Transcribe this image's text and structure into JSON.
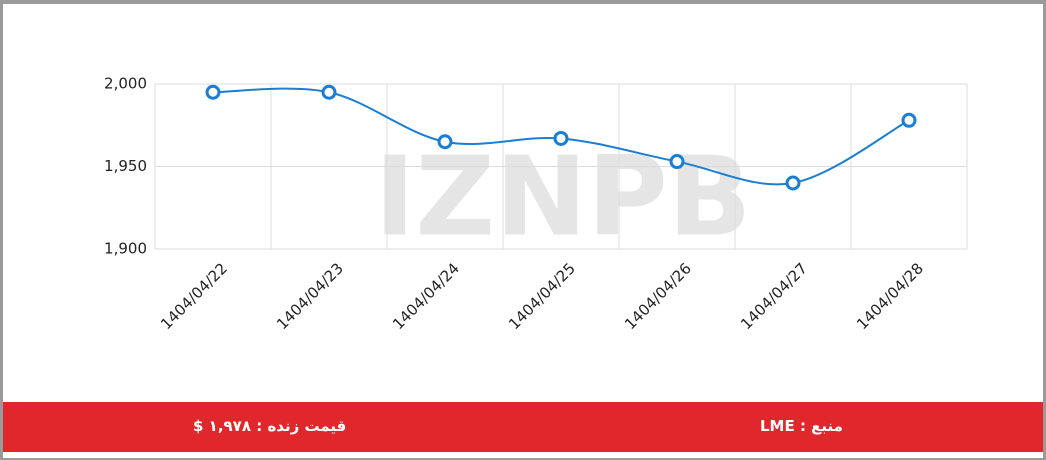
{
  "chart_data": {
    "type": "line",
    "categories": [
      "1404/04/22",
      "1404/04/23",
      "1404/04/24",
      "1404/04/25",
      "1404/04/26",
      "1404/04/27",
      "1404/04/28"
    ],
    "series": [
      {
        "color": "#1a7fd4",
        "values": [
          1995,
          1995,
          1965,
          1967,
          1953,
          1940,
          1978
        ]
      }
    ],
    "ylim": [
      1900,
      2000
    ],
    "yticks": [
      {
        "value": 1900,
        "label": "1,900"
      },
      {
        "value": 1950,
        "label": "1,950"
      },
      {
        "value": 2000,
        "label": "2,000"
      }
    ],
    "grid": true
  },
  "watermark": "IZNPB",
  "footer": {
    "price": "قیمت زنده : ۱,۹۷۸ $",
    "source": "منبع : LME"
  }
}
